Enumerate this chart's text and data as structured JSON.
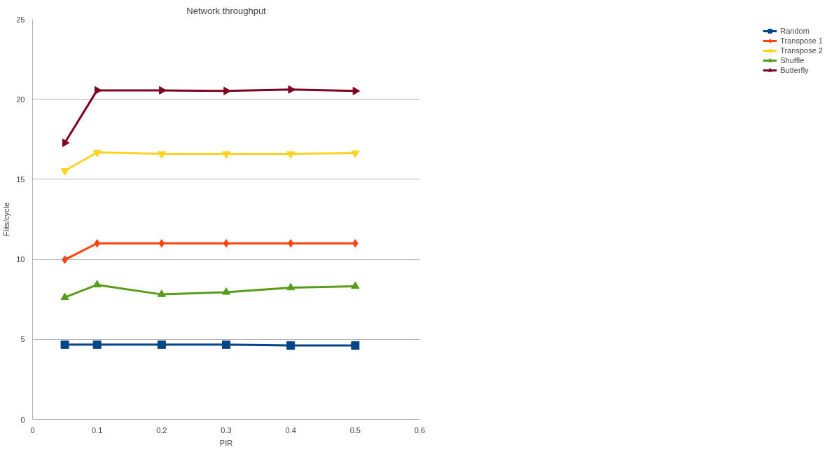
{
  "chart_data": {
    "type": "line",
    "title": "Network throughput",
    "xlabel": "PIR",
    "ylabel": "Flits/cycle",
    "x": [
      0.05,
      0.1,
      0.2,
      0.3,
      0.4,
      0.5
    ],
    "series": [
      {
        "name": "Random",
        "color": "#004586",
        "marker": "square",
        "values": [
          4.67,
          4.67,
          4.67,
          4.67,
          4.62,
          4.62
        ]
      },
      {
        "name": "Transpose 1",
        "color": "#ff420e",
        "marker": "diamond",
        "values": [
          9.98,
          11.0,
          11.0,
          11.0,
          11.0,
          11.0
        ]
      },
      {
        "name": "Transpose 2",
        "color": "#ffd320",
        "marker": "triangle_down",
        "values": [
          15.53,
          16.68,
          16.59,
          16.59,
          16.59,
          16.64
        ]
      },
      {
        "name": "Shuffle",
        "color": "#579d1c",
        "marker": "triangle",
        "values": [
          7.62,
          8.41,
          7.81,
          7.95,
          8.23,
          8.32
        ]
      },
      {
        "name": "Butterfly",
        "color": "#7e0021",
        "marker": "triangle_right",
        "values": [
          17.28,
          20.56,
          20.56,
          20.52,
          20.61,
          20.52
        ]
      }
    ],
    "xlim": [
      0,
      0.6
    ],
    "xticks": [
      0,
      0.1,
      0.2,
      0.3,
      0.4,
      0.5,
      0.6
    ],
    "ylim": [
      0,
      25
    ],
    "yticks": [
      0,
      5,
      10,
      15,
      20,
      25
    ],
    "grid": "y",
    "legend": "right",
    "line_style": "solid"
  }
}
